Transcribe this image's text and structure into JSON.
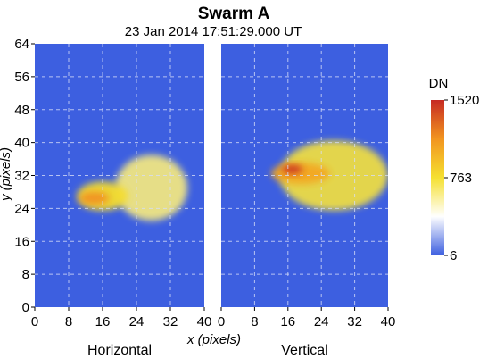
{
  "chart_data": {
    "type": "heatmap",
    "title": "Swarm A",
    "subtitle": "23 Jan 2014 17:51:29.000 UT",
    "xlabel": "x (pixels)",
    "ylabel": "y (pixels)",
    "xlim": [
      0,
      40
    ],
    "ylim": [
      0,
      64
    ],
    "x_ticks": [
      "0",
      "8",
      "16",
      "24",
      "32",
      "40"
    ],
    "y_ticks": [
      "0",
      "8",
      "16",
      "24",
      "32",
      "40",
      "48",
      "56",
      "64"
    ],
    "grid": true,
    "panels": [
      {
        "label": "Horizontal",
        "features": [
          {
            "shape": "ellipse",
            "cx": 27.5,
            "cy": 29,
            "rx": 8.5,
            "ry": 8,
            "peak_dn": 620
          },
          {
            "shape": "ellipse",
            "cx": 16,
            "cy": 27,
            "rx": 6,
            "ry": 3.5,
            "peak_dn": 780
          },
          {
            "shape": "ellipse",
            "cx": 14,
            "cy": 26.5,
            "rx": 3.5,
            "ry": 1.6,
            "peak_dn": 1150
          }
        ]
      },
      {
        "label": "Vertical",
        "features": [
          {
            "shape": "ellipse",
            "cx": 27,
            "cy": 32,
            "rx": 13,
            "ry": 8.5,
            "peak_dn": 740
          },
          {
            "shape": "ellipse",
            "cx": 19,
            "cy": 32.5,
            "rx": 7,
            "ry": 2.6,
            "peak_dn": 1050
          },
          {
            "shape": "ellipse",
            "cx": 17,
            "cy": 33.5,
            "rx": 2.5,
            "ry": 1.1,
            "peak_dn": 1480
          }
        ]
      }
    ],
    "colorbar": {
      "label": "DN",
      "min": 6,
      "max": 1520,
      "ticks": [
        "6",
        "763",
        "1520"
      ],
      "colors": [
        "#3d5fe0",
        "#ffffff",
        "#f5e030",
        "#f29520",
        "#c62a22"
      ]
    }
  }
}
